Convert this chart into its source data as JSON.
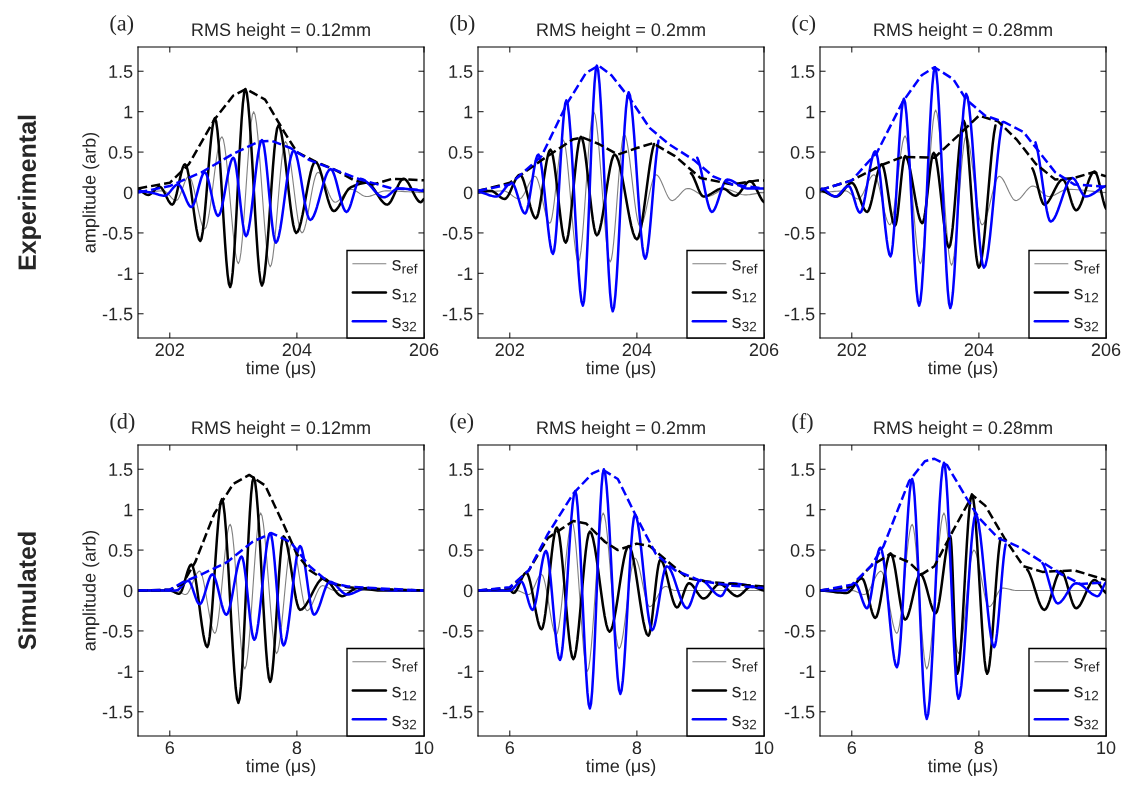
{
  "chart_data": [
    {
      "type": "line",
      "title": "RMS height = 0.12mm",
      "xlabel": "time (μs)",
      "ylabel": "amplitude (arb)",
      "annotations": [
        "(a)",
        "Experimental"
      ],
      "xlim": [
        201.5,
        206
      ],
      "xticks": [
        202,
        204,
        206
      ],
      "ylim": [
        -1.8,
        1.8
      ],
      "yticks": [
        -1.5,
        -1,
        -0.5,
        0,
        0.5,
        1,
        1.5
      ],
      "legend": "bottom right",
      "grid": false,
      "series": [
        {
          "name": "s$_{ref}$",
          "color": "#808080",
          "x": [
            201.5,
            201.9,
            202.1,
            202.3,
            202.55,
            202.82,
            203.08,
            203.32,
            203.58,
            203.82,
            204.08,
            204.33,
            204.6,
            204.85,
            205.1,
            205.4,
            206
          ],
          "values": [
            0,
            0.02,
            -0.1,
            0.2,
            -0.45,
            0.69,
            -0.88,
            1.0,
            -0.92,
            0.63,
            -0.5,
            0.25,
            -0.12,
            0.04,
            -0.05,
            0.02,
            0
          ]
        },
        {
          "name": "s$_{12}$",
          "color": "#000000",
          "x": [
            201.5,
            201.66,
            201.84,
            202.04,
            202.24,
            202.48,
            202.71,
            202.95,
            203.19,
            203.45,
            203.71,
            203.99,
            204.29,
            204.58,
            204.84,
            205.1,
            205.42,
            205.68,
            205.95,
            206
          ],
          "values": [
            0.04,
            -0.03,
            0.07,
            -0.15,
            0.35,
            -0.6,
            0.92,
            -1.17,
            1.28,
            -1.15,
            0.83,
            -0.5,
            0.38,
            -0.23,
            0.06,
            0.12,
            -0.15,
            0.17,
            -0.12,
            -0.08
          ]
        },
        {
          "name": "s$_{32}$",
          "color": "#0000ff",
          "x": [
            201.5,
            201.7,
            201.92,
            202.13,
            202.34,
            202.55,
            202.76,
            203.0,
            203.2,
            203.45,
            203.67,
            203.95,
            204.21,
            204.53,
            204.78,
            205.0,
            205.37,
            205.6,
            206
          ],
          "values": [
            0.02,
            0.0,
            -0.04,
            0.1,
            -0.18,
            0.25,
            -0.29,
            0.43,
            -0.54,
            0.65,
            -0.62,
            0.52,
            -0.34,
            0.29,
            -0.24,
            0.17,
            -0.06,
            0.05,
            0.02
          ]
        },
        {
          "color": "#000000",
          "line_style": "dashed",
          "x": [
            201.5,
            202.0,
            202.3,
            202.7,
            203.0,
            203.2,
            203.5,
            203.8,
            204.0,
            204.3,
            204.6,
            204.9,
            205.2,
            205.5,
            206
          ],
          "values": [
            0.05,
            0.12,
            0.35,
            0.9,
            1.2,
            1.28,
            1.15,
            0.75,
            0.5,
            0.38,
            0.28,
            0.15,
            0.1,
            0.17,
            0.15
          ]
        },
        {
          "color": "#0000ff",
          "line_style": "dashed",
          "x": [
            201.5,
            202.0,
            202.5,
            203.0,
            203.4,
            203.6,
            203.9,
            204.2,
            204.6,
            205.0,
            205.5,
            206
          ],
          "values": [
            0.0,
            0.08,
            0.25,
            0.48,
            0.63,
            0.64,
            0.55,
            0.4,
            0.28,
            0.16,
            0.05,
            0.03
          ]
        }
      ]
    },
    {
      "type": "line",
      "title": "RMS height = 0.2mm",
      "xlabel": "time (μs)",
      "annotations": [
        "(b)"
      ],
      "xlim": [
        201.5,
        206
      ],
      "xticks": [
        202,
        204,
        206
      ],
      "ylim": [
        -1.8,
        1.8
      ],
      "yticks": [
        -1.5,
        -1,
        -0.5,
        0,
        0.5,
        1,
        1.5
      ],
      "legend": "bottom right",
      "grid": false,
      "series": [
        {
          "name": "s$_{ref}$",
          "color": "#808080",
          "x": [
            201.5,
            201.9,
            202.15,
            202.4,
            202.63,
            202.84,
            203.08,
            203.32,
            203.58,
            203.8,
            204.05,
            204.3,
            204.55,
            204.8,
            205.1,
            205.4,
            205.7,
            206
          ],
          "values": [
            0,
            0.02,
            -0.08,
            0.2,
            -0.38,
            0.65,
            -0.86,
            1.0,
            -0.86,
            0.72,
            -0.42,
            0.22,
            -0.1,
            0.05,
            -0.05,
            0.04,
            -0.03,
            0
          ]
        },
        {
          "name": "s$_{12}$",
          "color": "#000000",
          "x": [
            201.5,
            201.7,
            201.92,
            202.16,
            202.41,
            202.64,
            202.88,
            203.12,
            203.37,
            203.65,
            204.0,
            204.27,
            204.55,
            204.85,
            205.05,
            205.35,
            205.55,
            205.78,
            206
          ],
          "values": [
            0.0,
            0.02,
            -0.08,
            0.22,
            -0.32,
            0.53,
            -0.62,
            0.69,
            -0.53,
            0.47,
            -0.58,
            0.6,
            null,
            0.24,
            -0.05,
            0.05,
            -0.04,
            0.14,
            -0.12
          ]
        },
        {
          "name": "s$_{32}$",
          "color": "#0000ff",
          "x": [
            201.5,
            201.79,
            202.03,
            202.24,
            202.45,
            202.68,
            202.89,
            203.15,
            203.37,
            203.62,
            203.87,
            204.13,
            204.34,
            204.63,
            204.95,
            205.18,
            205.42,
            205.74,
            206
          ],
          "values": [
            0.01,
            -0.05,
            0.12,
            -0.26,
            0.47,
            -0.76,
            1.14,
            -1.4,
            1.57,
            -1.47,
            1.24,
            -0.82,
            0.64,
            null,
            0.43,
            -0.24,
            0.16,
            0.05,
            0.05
          ]
        },
        {
          "color": "#000000",
          "line_style": "dashed",
          "x": [
            201.5,
            202.0,
            202.5,
            203.0,
            203.15,
            203.4,
            203.7,
            204.0,
            204.25,
            204.6,
            205.0,
            205.5,
            205.9,
            206
          ],
          "values": [
            0.02,
            0.12,
            0.4,
            0.66,
            0.68,
            0.6,
            0.47,
            0.55,
            0.61,
            0.45,
            0.18,
            0.1,
            0.15,
            0.15
          ]
        },
        {
          "color": "#0000ff",
          "line_style": "dashed",
          "x": [
            201.5,
            202.0,
            202.5,
            202.9,
            203.2,
            203.4,
            203.6,
            203.9,
            204.2,
            204.5,
            204.9,
            205.2,
            205.5,
            206
          ],
          "values": [
            0.02,
            0.1,
            0.45,
            1.1,
            1.48,
            1.57,
            1.45,
            1.15,
            0.8,
            0.6,
            0.4,
            0.2,
            0.1,
            0.05
          ]
        }
      ]
    },
    {
      "type": "line",
      "title": "RMS height = 0.28mm",
      "xlabel": "time (μs)",
      "annotations": [
        "(c)"
      ],
      "xlim": [
        201.5,
        206
      ],
      "xticks": [
        202,
        204,
        206
      ],
      "ylim": [
        -1.8,
        1.8
      ],
      "yticks": [
        -1.5,
        -1,
        -0.5,
        0,
        0.5,
        1,
        1.5
      ],
      "legend": "bottom right",
      "grid": false,
      "series": [
        {
          "name": "s$_{ref}$",
          "color": "#808080",
          "x": [
            201.5,
            201.9,
            202.1,
            202.35,
            202.6,
            202.84,
            203.08,
            203.32,
            203.57,
            203.8,
            204.05,
            204.32,
            204.58,
            204.85,
            205.1,
            205.4,
            206
          ],
          "values": [
            0,
            0.02,
            -0.08,
            0.22,
            -0.4,
            0.7,
            -0.88,
            1.02,
            -0.9,
            0.7,
            -0.4,
            0.2,
            -0.1,
            0.08,
            -0.05,
            0.04,
            0
          ]
        },
        {
          "name": "s$_{12}$",
          "color": "#000000",
          "x": [
            201.5,
            201.76,
            202.0,
            202.24,
            202.47,
            202.68,
            202.84,
            203.11,
            203.29,
            203.53,
            203.76,
            204.0,
            204.26,
            204.55,
            204.84,
            205.03,
            205.32,
            205.53,
            205.82,
            206
          ],
          "values": [
            0.03,
            -0.05,
            0.12,
            -0.24,
            0.35,
            -0.41,
            0.45,
            -0.38,
            0.49,
            -0.68,
            0.89,
            -0.93,
            0.83,
            null,
            0.3,
            -0.15,
            0.16,
            -0.22,
            0.26,
            -0.2
          ]
        },
        {
          "name": "s$_{32}$",
          "color": "#0000ff",
          "x": [
            201.53,
            201.74,
            201.95,
            202.13,
            202.37,
            202.61,
            202.82,
            203.06,
            203.31,
            203.55,
            203.8,
            204.08,
            204.37,
            204.63,
            204.89,
            205.13,
            205.47,
            205.68,
            206
          ],
          "values": [
            0.05,
            -0.05,
            0.08,
            -0.25,
            0.51,
            -0.79,
            1.16,
            -1.4,
            1.55,
            -1.43,
            1.22,
            -0.93,
            0.87,
            null,
            0.62,
            -0.36,
            0.18,
            -0.05,
            0.08
          ]
        },
        {
          "color": "#000000",
          "line_style": "dashed",
          "x": [
            201.5,
            202.0,
            202.5,
            202.8,
            203.3,
            203.6,
            204.0,
            204.3,
            204.6,
            204.9,
            205.2,
            205.5,
            205.8,
            206
          ],
          "values": [
            0.03,
            0.15,
            0.35,
            0.44,
            0.43,
            0.65,
            0.95,
            0.88,
            0.65,
            0.35,
            0.16,
            0.18,
            0.25,
            0.2
          ]
        },
        {
          "color": "#0000ff",
          "line_style": "dashed",
          "x": [
            201.5,
            202.0,
            202.4,
            202.8,
            203.1,
            203.3,
            203.6,
            203.8,
            204.1,
            204.4,
            204.7,
            204.9,
            205.2,
            205.5,
            206
          ],
          "values": [
            0.03,
            0.15,
            0.5,
            1.12,
            1.45,
            1.55,
            1.4,
            1.15,
            0.95,
            0.87,
            0.75,
            0.55,
            0.25,
            0.1,
            0.07
          ]
        }
      ]
    },
    {
      "type": "line",
      "title": "RMS height = 0.12mm",
      "xlabel": "time (μs)",
      "ylabel": "amplitude (arb)",
      "annotations": [
        "(d)",
        "Simulated"
      ],
      "xlim": [
        5.5,
        10
      ],
      "xticks": [
        6,
        8,
        10
      ],
      "ylim": [
        -1.8,
        1.8
      ],
      "yticks": [
        -1.5,
        -1,
        -0.5,
        0,
        0.5,
        1,
        1.5
      ],
      "legend": "bottom right",
      "grid": false,
      "series": [
        {
          "name": "s$_{ref}$",
          "color": "#808080",
          "x": [
            5.5,
            6.1,
            6.25,
            6.47,
            6.71,
            6.95,
            7.18,
            7.43,
            7.68,
            7.92,
            8.16,
            8.4,
            8.6,
            10
          ],
          "values": [
            0,
            0,
            -0.05,
            0.24,
            -0.53,
            0.82,
            -0.97,
            0.96,
            -0.78,
            0.59,
            -0.25,
            0.06,
            0,
            0
          ]
        },
        {
          "name": "s$_{12}$",
          "color": "#000000",
          "x": [
            5.5,
            6.0,
            6.15,
            6.34,
            6.59,
            6.82,
            7.08,
            7.32,
            7.58,
            7.79,
            8.05,
            8.42,
            8.71,
            8.95,
            9.3,
            10
          ],
          "values": [
            0,
            0,
            -0.04,
            0.32,
            -0.7,
            1.13,
            -1.39,
            1.4,
            -1.13,
            0.67,
            -0.24,
            0.15,
            -0.07,
            0.03,
            0,
            0
          ]
        },
        {
          "name": "s$_{32}$",
          "color": "#0000ff",
          "x": [
            5.5,
            6.1,
            6.29,
            6.47,
            6.67,
            6.89,
            7.13,
            7.33,
            7.58,
            7.79,
            8.05,
            8.27,
            8.52,
            8.79,
            9.1,
            9.5,
            10
          ],
          "values": [
            0,
            0,
            0.12,
            -0.17,
            0.2,
            -0.3,
            0.42,
            -0.61,
            0.71,
            -0.68,
            0.55,
            -0.3,
            0.11,
            -0.05,
            0.03,
            0,
            0
          ]
        },
        {
          "color": "#000000",
          "line_style": "dashed",
          "x": [
            5.5,
            6.0,
            6.2,
            6.4,
            6.7,
            7.0,
            7.25,
            7.5,
            7.8,
            8.0,
            8.2,
            8.5,
            8.8,
            9.2,
            10
          ],
          "values": [
            0,
            0.01,
            0.08,
            0.35,
            0.95,
            1.32,
            1.43,
            1.3,
            0.8,
            0.45,
            0.25,
            0.1,
            0.04,
            0.02,
            0
          ]
        },
        {
          "color": "#0000ff",
          "line_style": "dashed",
          "x": [
            5.5,
            6.0,
            6.2,
            6.5,
            6.9,
            7.3,
            7.6,
            7.9,
            8.2,
            8.5,
            8.8,
            9.2,
            10
          ],
          "values": [
            0,
            0.01,
            0.1,
            0.2,
            0.35,
            0.6,
            0.71,
            0.6,
            0.3,
            0.1,
            0.05,
            0.03,
            0
          ]
        }
      ]
    },
    {
      "type": "line",
      "title": "RMS height = 0.2mm",
      "xlabel": "time (μs)",
      "annotations": [
        "(e)"
      ],
      "xlim": [
        5.5,
        10
      ],
      "xticks": [
        6,
        8,
        10
      ],
      "ylim": [
        -1.8,
        1.8
      ],
      "yticks": [
        -1.5,
        -1,
        -0.5,
        0,
        0.5,
        1,
        1.5
      ],
      "legend": "bottom right",
      "grid": false,
      "series": [
        {
          "name": "s$_{ref}$",
          "color": "#808080",
          "x": [
            5.5,
            6.1,
            6.3,
            6.5,
            6.73,
            6.98,
            7.22,
            7.47,
            7.72,
            7.97,
            8.2,
            8.45,
            8.6,
            10
          ],
          "values": [
            0,
            0,
            -0.05,
            0.2,
            -0.55,
            0.85,
            -1.0,
            0.96,
            -0.72,
            0.4,
            -0.2,
            0.05,
            0,
            0
          ]
        },
        {
          "name": "s$_{12}$",
          "color": "#000000",
          "x": [
            5.5,
            6.0,
            6.06,
            6.26,
            6.5,
            6.74,
            7.0,
            7.26,
            7.57,
            7.87,
            8.18,
            8.37,
            8.63,
            8.82,
            9.05,
            9.3,
            9.58,
            9.8,
            10
          ],
          "values": [
            0,
            0,
            -0.03,
            0.22,
            -0.48,
            0.78,
            -0.85,
            0.73,
            -0.51,
            0.55,
            -0.56,
            0.38,
            -0.21,
            0.09,
            -0.1,
            0.08,
            -0.07,
            0.05,
            0
          ]
        },
        {
          "name": "s$_{32}$",
          "color": "#0000ff",
          "x": [
            5.5,
            6.0,
            6.18,
            6.36,
            6.57,
            6.79,
            7.03,
            7.26,
            7.48,
            7.74,
            7.97,
            8.24,
            8.47,
            8.79,
            9.0,
            9.32,
            9.47,
            10
          ],
          "values": [
            0,
            0,
            0.11,
            -0.24,
            0.49,
            -0.86,
            1.23,
            -1.46,
            1.5,
            -1.28,
            0.94,
            -0.49,
            0.3,
            -0.22,
            0.13,
            -0.07,
            0.09,
            0.03
          ]
        },
        {
          "color": "#000000",
          "line_style": "dashed",
          "x": [
            5.5,
            6.0,
            6.3,
            6.6,
            7.0,
            7.2,
            7.5,
            7.7,
            8.0,
            8.2,
            8.5,
            8.8,
            9.2,
            10
          ],
          "values": [
            0,
            0.03,
            0.25,
            0.65,
            0.86,
            0.83,
            0.6,
            0.5,
            0.58,
            0.55,
            0.35,
            0.15,
            0.1,
            0.05
          ]
        },
        {
          "color": "#0000ff",
          "line_style": "dashed",
          "x": [
            5.5,
            6.0,
            6.3,
            6.6,
            7.0,
            7.3,
            7.45,
            7.7,
            8.0,
            8.3,
            8.6,
            9.0,
            9.5,
            10
          ],
          "values": [
            0,
            0.04,
            0.25,
            0.7,
            1.2,
            1.45,
            1.5,
            1.38,
            0.9,
            0.45,
            0.25,
            0.12,
            0.06,
            0.03
          ]
        }
      ]
    },
    {
      "type": "line",
      "title": "RMS height = 0.28mm",
      "xlabel": "time (μs)",
      "annotations": [
        "(f)"
      ],
      "xlim": [
        5.5,
        10
      ],
      "xticks": [
        6,
        8,
        10
      ],
      "ylim": [
        -1.8,
        1.8
      ],
      "yticks": [
        -1.5,
        -1,
        -0.5,
        0,
        0.5,
        1,
        1.5
      ],
      "legend": "bottom right",
      "grid": false,
      "series": [
        {
          "name": "s$_{ref}$",
          "color": "#808080",
          "x": [
            5.5,
            6.0,
            6.2,
            6.46,
            6.71,
            6.95,
            7.18,
            7.45,
            7.68,
            7.92,
            8.16,
            8.37,
            8.6,
            10
          ],
          "values": [
            0,
            0,
            -0.05,
            0.24,
            -0.53,
            0.82,
            -0.97,
            0.96,
            -0.78,
            0.5,
            -0.2,
            0.03,
            0,
            0
          ]
        },
        {
          "name": "s$_{12}$",
          "color": "#000000",
          "x": [
            5.5,
            5.92,
            6.16,
            6.37,
            6.61,
            6.84,
            7.08,
            7.32,
            7.55,
            7.66,
            7.89,
            8.13,
            8.34,
            8.55,
            8.76,
            9.03,
            9.29,
            9.53,
            9.82,
            10
          ],
          "values": [
            0,
            -0.03,
            0.15,
            -0.34,
            0.46,
            -0.36,
            0.2,
            -0.28,
            0.67,
            -1.03,
            1.19,
            -1.03,
            0.65,
            null,
            0.26,
            -0.24,
            0.24,
            -0.22,
            0.13,
            -0.03
          ]
        },
        {
          "name": "s$_{32}$",
          "color": "#0000ff",
          "x": [
            5.5,
            5.9,
            6.05,
            6.24,
            6.45,
            6.71,
            6.95,
            7.18,
            7.45,
            7.68,
            7.95,
            8.24,
            8.42,
            8.74,
            9.0,
            9.24,
            9.53,
            9.87,
            10
          ],
          "values": [
            0,
            0,
            0.09,
            -0.22,
            0.53,
            -0.95,
            1.38,
            -1.59,
            1.58,
            -1.34,
            0.94,
            -0.7,
            0.57,
            null,
            0.34,
            -0.16,
            0.09,
            -0.07,
            0.1
          ]
        },
        {
          "color": "#000000",
          "line_style": "dashed",
          "x": [
            5.5,
            6.0,
            6.3,
            6.6,
            6.9,
            7.1,
            7.3,
            7.6,
            7.9,
            8.1,
            8.4,
            8.7,
            9.0,
            9.5,
            10
          ],
          "values": [
            0,
            0.05,
            0.3,
            0.45,
            0.35,
            0.2,
            0.3,
            0.75,
            1.18,
            1.05,
            0.65,
            0.3,
            0.23,
            0.25,
            0.13
          ]
        },
        {
          "color": "#0000ff",
          "line_style": "dashed",
          "x": [
            5.5,
            6.0,
            6.3,
            6.5,
            6.9,
            7.15,
            7.3,
            7.5,
            7.8,
            8.0,
            8.3,
            8.6,
            9.0,
            9.3,
            9.6,
            10
          ],
          "values": [
            0,
            0.07,
            0.3,
            0.55,
            1.35,
            1.6,
            1.63,
            1.55,
            1.15,
            0.9,
            0.65,
            0.55,
            0.35,
            0.2,
            0.08,
            0.1
          ]
        }
      ]
    }
  ]
}
